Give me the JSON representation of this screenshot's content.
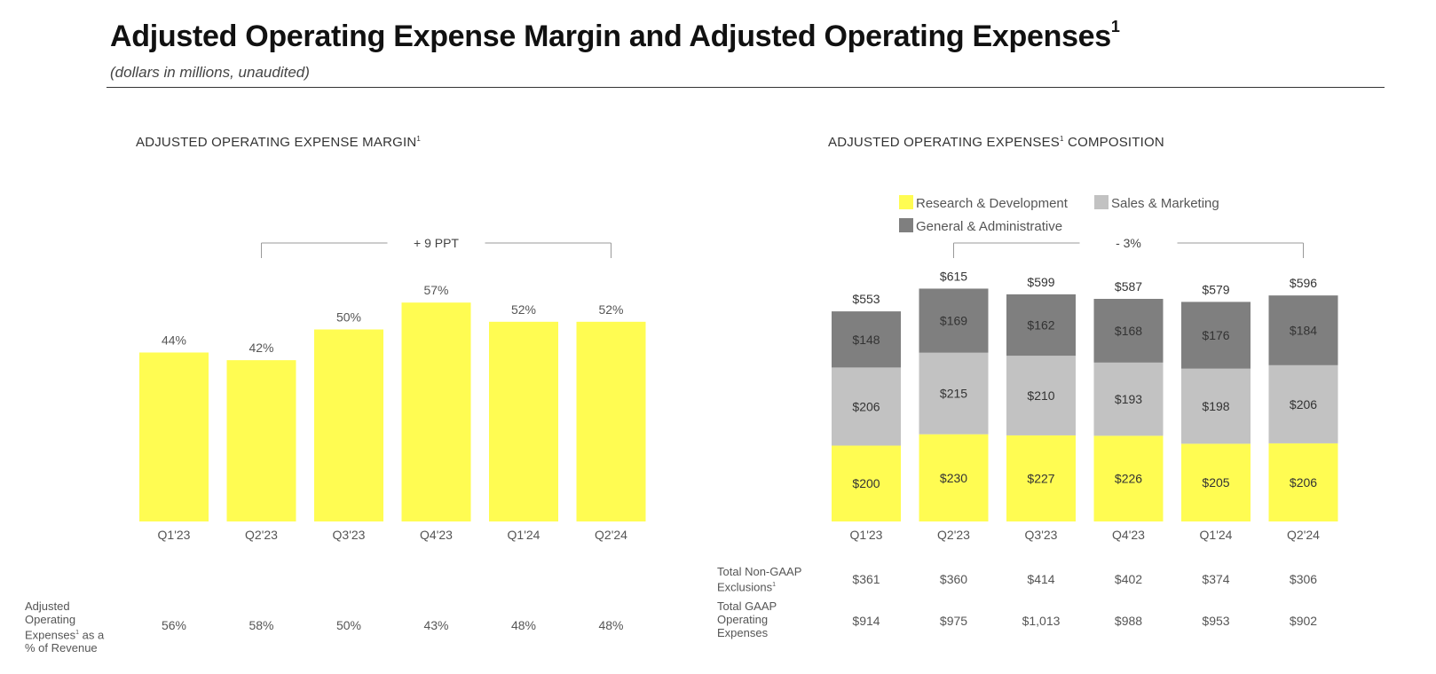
{
  "page": {
    "title": "Adjusted Operating Expense Margin and Adjusted Operating Expenses",
    "title_sup": "1",
    "subtitle": "(dollars in millions, unaudited)"
  },
  "colors": {
    "yellow": "#FFFC52",
    "light_gray": "#C2C2C2",
    "dark_gray": "#7F7F7F",
    "bracket": "#999999",
    "text": "#555555"
  },
  "chart_data": [
    {
      "type": "bar",
      "title": "ADJUSTED OPERATING EXPENSE MARGIN",
      "title_sup": "1",
      "categories": [
        "Q1'23",
        "Q2'23",
        "Q3'23",
        "Q4'23",
        "Q1'24",
        "Q2'24"
      ],
      "values": [
        44,
        42,
        50,
        57,
        52,
        52
      ],
      "value_labels": [
        "44%",
        "42%",
        "50%",
        "57%",
        "52%",
        "52%"
      ],
      "ylim": [
        0,
        60
      ],
      "annotation": {
        "text": "+ 9 PPT",
        "from": "Q2'23",
        "to": "Q2'24"
      },
      "table_rows": [
        {
          "label_lines": [
            "Adjusted",
            "Operating",
            "Expenses",
            "as a",
            "% of Revenue"
          ],
          "values": [
            "56%",
            "58%",
            "50%",
            "43%",
            "48%",
            "48%"
          ]
        }
      ]
    },
    {
      "type": "bar",
      "stacked": true,
      "title_part1": "ADJUSTED OPERATING EXPENSES",
      "title_sup": "1",
      "title_part2": " COMPOSITION",
      "categories": [
        "Q1'23",
        "Q2'23",
        "Q3'23",
        "Q4'23",
        "Q1'24",
        "Q2'24"
      ],
      "series": [
        {
          "name": "Research & Development",
          "color": "#FFFC52",
          "values": [
            200,
            230,
            227,
            226,
            205,
            206
          ],
          "labels": [
            "$200",
            "$230",
            "$227",
            "$226",
            "$205",
            "$206"
          ]
        },
        {
          "name": "Sales & Marketing",
          "color": "#C2C2C2",
          "values": [
            206,
            215,
            210,
            193,
            198,
            206
          ],
          "labels": [
            "$206",
            "$215",
            "$210",
            "$193",
            "$198",
            "$206"
          ]
        },
        {
          "name": "General & Administrative",
          "color": "#7F7F7F",
          "values": [
            148,
            169,
            162,
            168,
            176,
            184
          ],
          "labels": [
            "$148",
            "$169",
            "$162",
            "$168",
            "$176",
            "$184"
          ]
        }
      ],
      "totals": [
        553,
        615,
        599,
        587,
        579,
        596
      ],
      "total_labels": [
        "$553",
        "$615",
        "$599",
        "$587",
        "$579",
        "$596"
      ],
      "ylim": [
        0,
        650
      ],
      "annotation": {
        "text": "- 3%",
        "from": "Q2'23",
        "to": "Q2'24"
      },
      "table_rows": [
        {
          "label_lines": [
            "Total Non-GAAP",
            "Exclusions"
          ],
          "sup_line": 1,
          "values": [
            "$361",
            "$360",
            "$414",
            "$402",
            "$374",
            "$306"
          ]
        },
        {
          "label_lines": [
            "Total GAAP",
            "Operating",
            "Expenses"
          ],
          "values": [
            "$914",
            "$975",
            "$1,013",
            "$988",
            "$953",
            "$902"
          ]
        }
      ]
    }
  ]
}
